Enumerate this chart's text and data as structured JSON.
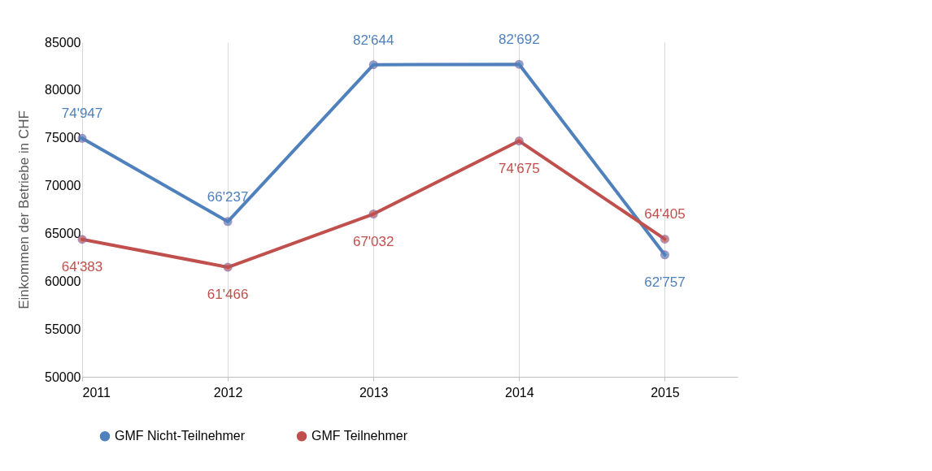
{
  "chart_data": {
    "type": "line",
    "ylabel": "Einkommen der Betriebe in CHF",
    "x": [
      2011,
      2012,
      2013,
      2014,
      2015
    ],
    "series": [
      {
        "name": "GMF Nicht-Teilnehmer",
        "color": "#4f81bd",
        "values": [
          74947,
          66237,
          82644,
          82692,
          62757
        ],
        "value_labels": [
          "74'947",
          "66'237",
          "82'644",
          "82'692",
          "62'757"
        ]
      },
      {
        "name": "GMF Teilnehmer",
        "color": "#c0504d",
        "values": [
          64383,
          61466,
          67032,
          74675,
          64405
        ],
        "value_labels": [
          "64'383",
          "61'466",
          "67'032",
          "74'675",
          "64'405"
        ]
      }
    ],
    "xlim": [
      2011,
      2015.5
    ],
    "xticks": [
      2011,
      2012,
      2013,
      2014,
      2015
    ],
    "ylim": [
      50000,
      85000
    ],
    "yticks": [
      50000,
      55000,
      60000,
      65000,
      70000,
      75000,
      80000,
      85000
    ],
    "grid": "x",
    "legend": "bottom",
    "marker": "circle",
    "line_style": "solid"
  }
}
